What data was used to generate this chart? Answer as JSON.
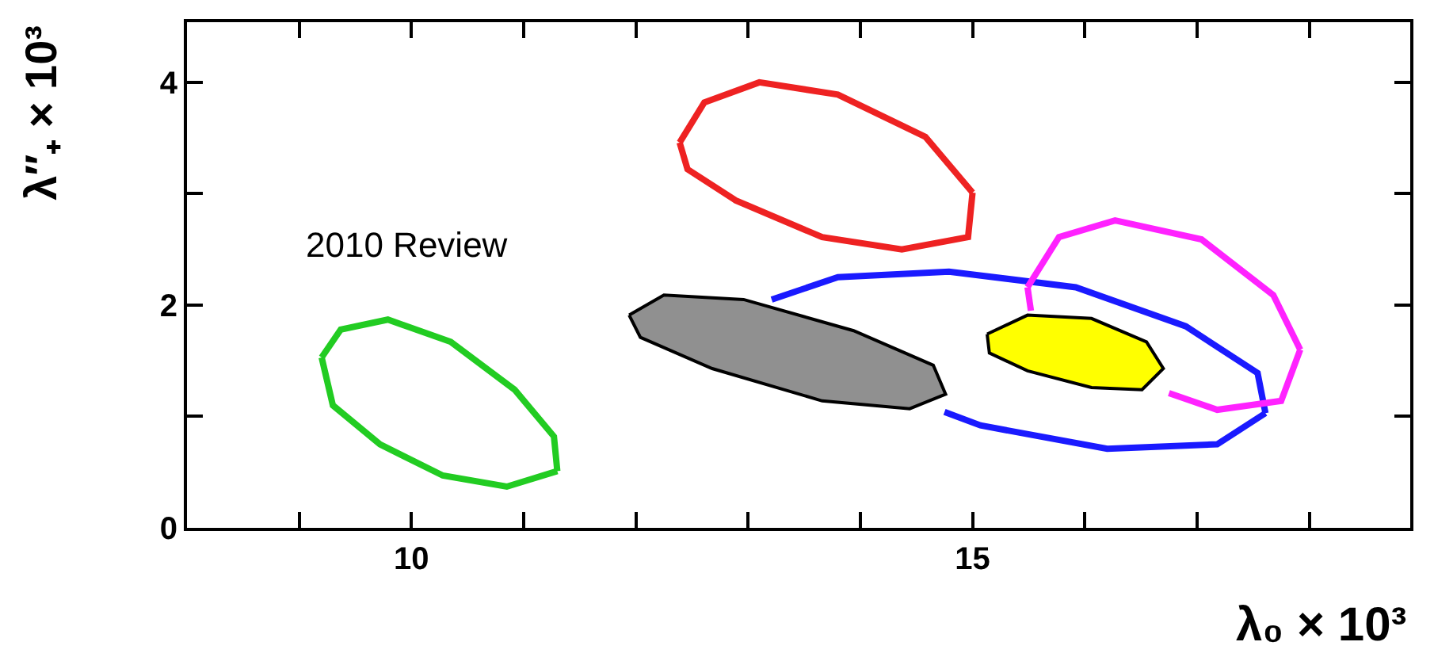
{
  "chart_data": {
    "type": "line",
    "xlabel": "λ₀ × 10³",
    "ylabel": "λ″₊ × 10³",
    "annotations": [
      "2010 Review"
    ],
    "xlim": [
      8,
      18.9
    ],
    "ylim": [
      0,
      4.54
    ],
    "xticks": [
      {
        "value": 9,
        "label": null
      },
      10,
      {
        "value": 11,
        "label": null
      },
      {
        "value": 12,
        "label": null
      },
      {
        "value": 13,
        "label": null
      },
      {
        "value": 14,
        "label": null
      },
      15,
      {
        "value": 16,
        "label": null
      },
      {
        "value": 17,
        "label": null
      },
      {
        "value": 18,
        "label": null
      }
    ],
    "yticks": [
      0,
      {
        "value": 1,
        "label": null
      },
      2,
      {
        "value": 3,
        "label": null
      },
      4
    ],
    "marker": "none",
    "line_style": "solid",
    "series": [
      {
        "color": "#22cc22",
        "x": [
          9.2,
          9.37,
          9.79,
          10.35,
          10.92,
          11.27,
          11.3
        ],
        "values": [
          1.53,
          1.78,
          1.87,
          1.67,
          1.24,
          0.82,
          0.51
        ]
      },
      {
        "color": "#22cc22",
        "x": [
          9.2,
          9.3,
          9.72,
          10.28,
          10.85,
          11.3
        ],
        "values": [
          1.53,
          1.1,
          0.75,
          0.47,
          0.37,
          0.51
        ]
      },
      {
        "color": "#ee2222",
        "x": [
          12.39,
          12.61,
          13.1,
          13.8,
          14.58,
          15.0
        ],
        "values": [
          3.46,
          3.82,
          4.0,
          3.89,
          3.51,
          3.01
        ]
      },
      {
        "color": "#ee2222",
        "x": [
          12.39,
          12.46,
          12.89,
          13.66,
          14.37,
          14.96,
          15.0
        ],
        "values": [
          3.46,
          3.22,
          2.94,
          2.61,
          2.5,
          2.61,
          3.01
        ]
      },
      {
        "color": "#1a1aff",
        "x": [
          13.21,
          13.8,
          14.79,
          15.92,
          16.9,
          17.54,
          17.61
        ],
        "values": [
          2.05,
          2.25,
          2.3,
          2.16,
          1.81,
          1.39,
          1.03
        ]
      },
      {
        "color": "#1a1aff",
        "x": [
          14.75,
          15.07,
          16.2,
          17.18,
          17.61
        ],
        "values": [
          1.04,
          0.92,
          0.71,
          0.75,
          1.03
        ]
      },
      {
        "color": "#ff22ff",
        "x": [
          15.49,
          15.77,
          16.27,
          17.04,
          17.68,
          17.92
        ],
        "values": [
          2.16,
          2.61,
          2.76,
          2.59,
          2.09,
          1.6
        ]
      },
      {
        "color": "#ff22ff",
        "x": [
          15.49,
          15.52,
          15.85,
          16.48,
          16.75,
          17.18,
          17.75,
          17.92
        ],
        "values": [
          2.16,
          1.95,
          null,
          null,
          1.21,
          1.06,
          1.14,
          1.6
        ]
      },
      {
        "type": "area",
        "color": "#909090",
        "x": [
          11.94,
          12.25,
          12.96,
          13.94,
          14.65,
          14.76,
          14.44,
          13.66,
          12.68,
          12.04,
          11.94
        ],
        "values": [
          1.91,
          2.09,
          2.05,
          1.77,
          1.46,
          1.2,
          1.07,
          1.14,
          1.43,
          1.71,
          1.91
        ]
      },
      {
        "type": "area",
        "color": "#ffff00",
        "x": [
          15.13,
          15.49,
          16.06,
          16.55,
          16.7,
          16.51,
          16.06,
          15.49,
          15.15,
          15.13
        ],
        "values": [
          1.74,
          1.91,
          1.88,
          1.67,
          1.43,
          1.24,
          1.26,
          1.41,
          1.57,
          1.74
        ]
      }
    ]
  }
}
